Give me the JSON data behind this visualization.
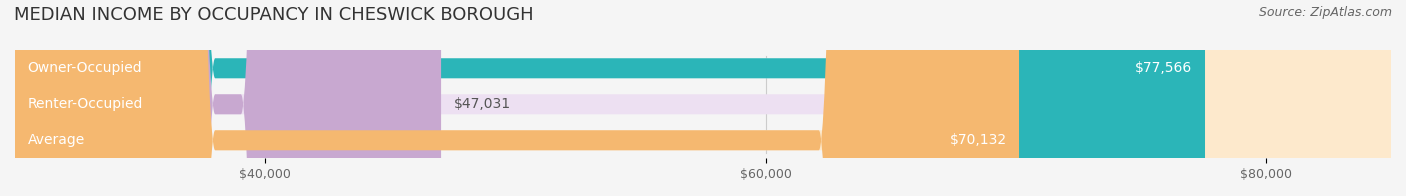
{
  "title": "MEDIAN INCOME BY OCCUPANCY IN CHESWICK BOROUGH",
  "source": "Source: ZipAtlas.com",
  "categories": [
    "Owner-Occupied",
    "Renter-Occupied",
    "Average"
  ],
  "values": [
    77566,
    47031,
    70132
  ],
  "labels": [
    "$77,566",
    "$47,031",
    "$70,132"
  ],
  "bar_colors": [
    "#2bb5b8",
    "#c8a8d0",
    "#f5b870"
  ],
  "bar_bg_colors": [
    "#d6f0f1",
    "#ede0f2",
    "#fde9cc"
  ],
  "xlim": [
    30000,
    85000
  ],
  "xticks": [
    40000,
    60000,
    80000
  ],
  "xtick_labels": [
    "$40,000",
    "$60,000",
    "$80,000"
  ],
  "title_fontsize": 13,
  "source_fontsize": 9,
  "label_fontsize": 10,
  "cat_fontsize": 10,
  "background_color": "#f5f5f5",
  "bar_height": 0.55
}
